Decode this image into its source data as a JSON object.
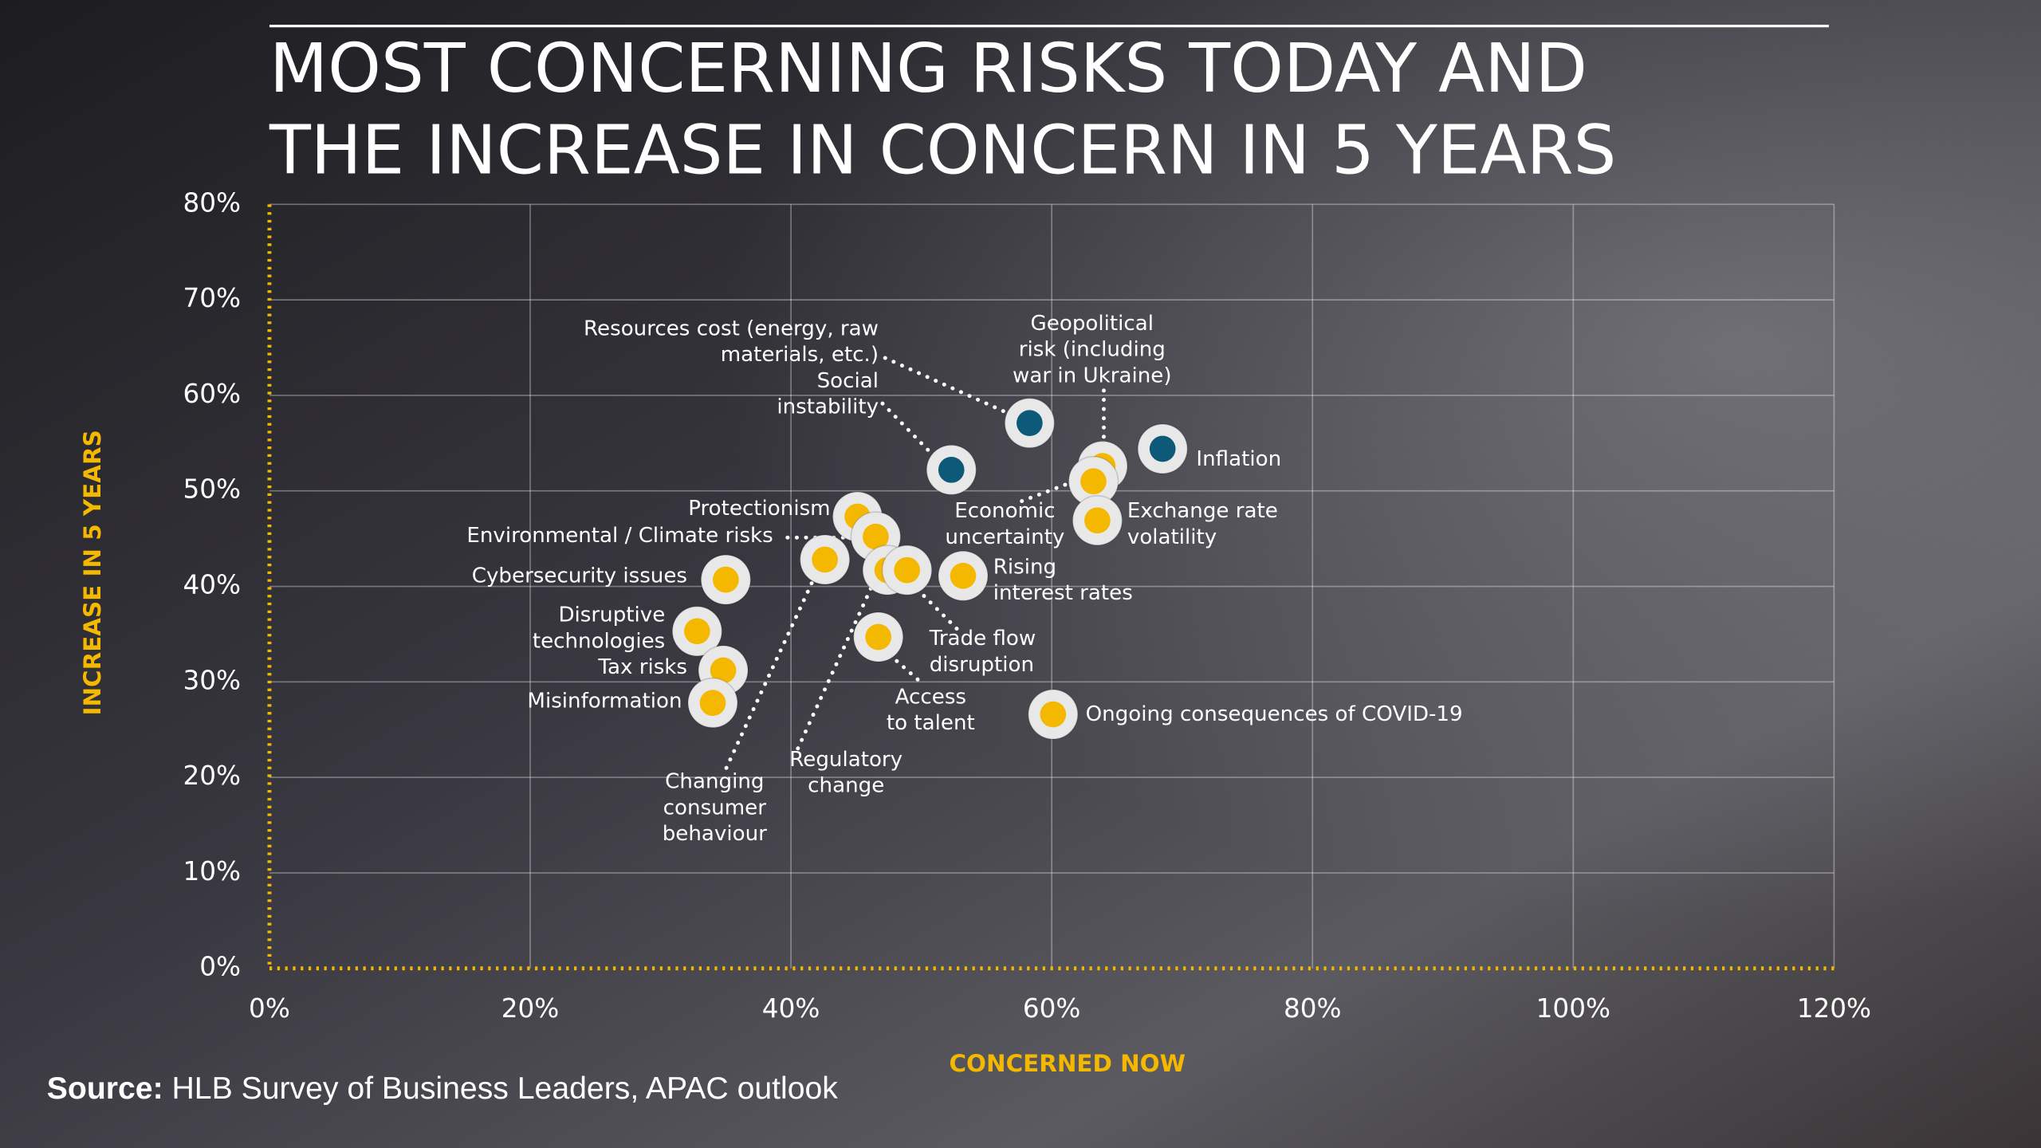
{
  "chart_data": {
    "type": "scatter",
    "title": [
      "MOST CONCERNING RISKS TODAY AND",
      "THE INCREASE IN CONCERN IN 5 YEARS"
    ],
    "x_label": "CONCERNED NOW",
    "y_label": "INCREASE IN 5 YEARS",
    "source": {
      "prefix": "Source:",
      "text": "HLB Survey of Business Leaders, APAC outlook"
    },
    "xlim": [
      0,
      120
    ],
    "ylim": [
      0,
      80
    ],
    "xticks": [
      {
        "value": 0,
        "label": "0%"
      },
      {
        "value": 20,
        "label": "20%"
      },
      {
        "value": 40,
        "label": "40%"
      },
      {
        "value": 60,
        "label": "60%"
      },
      {
        "value": 80,
        "label": "80%"
      },
      {
        "value": 100,
        "label": "100%"
      },
      {
        "value": 120,
        "label": "120%"
      }
    ],
    "yticks": [
      {
        "value": 0,
        "label": "0%"
      },
      {
        "value": 10,
        "label": "10%"
      },
      {
        "value": 20,
        "label": "20%"
      },
      {
        "value": 30,
        "label": "30%"
      },
      {
        "value": 40,
        "label": "40%"
      },
      {
        "value": 50,
        "label": "50%"
      },
      {
        "value": 60,
        "label": "60%"
      },
      {
        "value": 70,
        "label": "70%"
      },
      {
        "value": 80,
        "label": "80%"
      }
    ],
    "grid": true,
    "points": [
      {
        "label": [
          "Resources cost (energy, raw",
          "materials, etc.)"
        ],
        "x": 58.3,
        "y": 57.1,
        "color": "#0d5a78"
      },
      {
        "label": [
          "Social",
          "instability"
        ],
        "x": 52.3,
        "y": 52.2,
        "color": "#0d5a78"
      },
      {
        "label": [
          "Geopolitical",
          "risk (including",
          "war in Ukraine)"
        ],
        "x": 63.9,
        "y": 52.6,
        "color": "#f5b800"
      },
      {
        "label": [
          "Inflation"
        ],
        "x": 68.5,
        "y": 54.4,
        "color": "#0d5a78"
      },
      {
        "label": [
          "Economic",
          "uncertainty"
        ],
        "x": 63.2,
        "y": 51.0,
        "color": "#f5b800"
      },
      {
        "label": [
          "Exchange rate",
          "volatility"
        ],
        "x": 63.5,
        "y": 46.9,
        "color": "#f5b800"
      },
      {
        "label": [
          "Protectionism"
        ],
        "x": 45.1,
        "y": 47.3,
        "color": "#f5b800"
      },
      {
        "label": [
          "Environmental / Climate risks"
        ],
        "x": 46.5,
        "y": 45.2,
        "color": "#f5b800"
      },
      {
        "label": [
          "Cybersecurity issues"
        ],
        "x": 35.0,
        "y": 40.7,
        "color": "#f5b800"
      },
      {
        "label": [
          "Disruptive",
          "technologies"
        ],
        "x": 32.8,
        "y": 35.3,
        "color": "#f5b800"
      },
      {
        "label": [
          "Tax risks"
        ],
        "x": 34.8,
        "y": 31.2,
        "color": "#f5b800"
      },
      {
        "label": [
          "Misinformation"
        ],
        "x": 34.0,
        "y": 27.8,
        "color": "#f5b800"
      },
      {
        "label": [
          "Changing",
          "consumer",
          "behaviour"
        ],
        "x": 42.6,
        "y": 42.8,
        "color": "#f5b800"
      },
      {
        "label": [
          "Regulatory",
          "change"
        ],
        "x": 47.4,
        "y": 41.7,
        "color": "#f5b800"
      },
      {
        "label": [
          "Trade flow",
          "disruption"
        ],
        "x": 48.9,
        "y": 41.7,
        "color": "#f5b800"
      },
      {
        "label": [
          "Access",
          "to talent"
        ],
        "x": 46.7,
        "y": 34.7,
        "color": "#f5b800"
      },
      {
        "label": [
          "Rising",
          "interest rates"
        ],
        "x": 53.2,
        "y": 41.1,
        "color": "#f5b800"
      },
      {
        "label": [
          "Ongoing consequences of COVID-19"
        ],
        "x": 60.1,
        "y": 26.6,
        "color": "#f5b800"
      }
    ]
  }
}
